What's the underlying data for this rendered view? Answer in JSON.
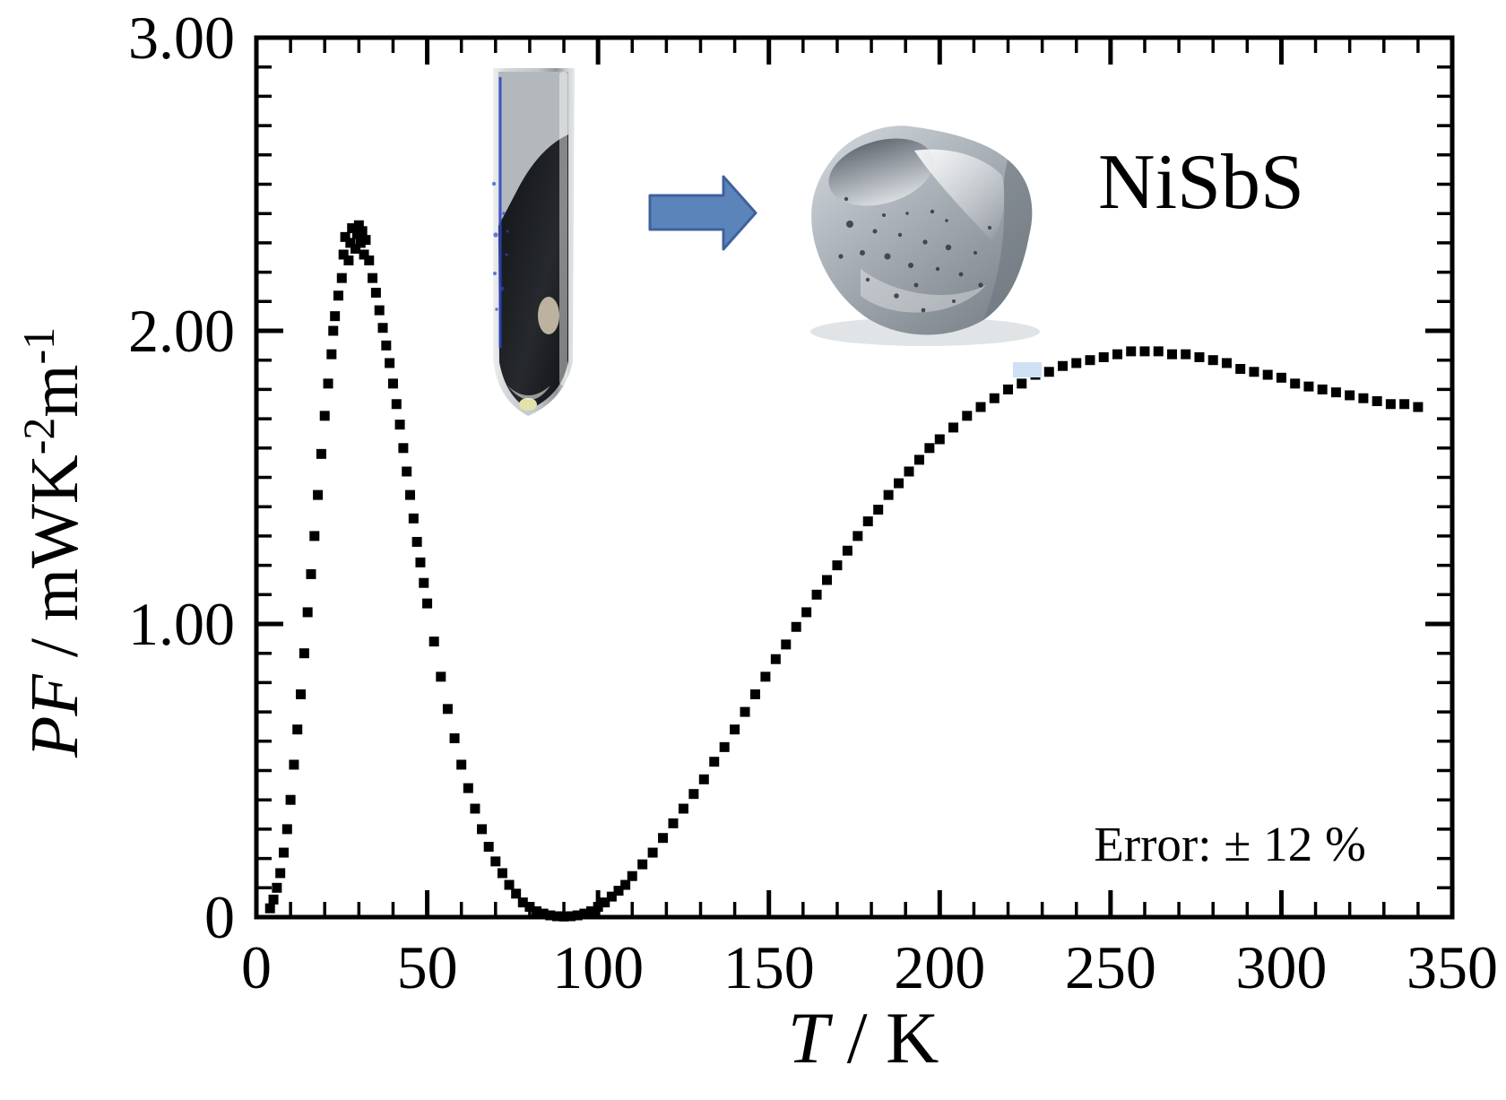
{
  "annotations": {
    "sample_label": "NiSbS",
    "error_label": "Error: ± 12 %"
  },
  "colors": {
    "marker": "#000000",
    "axis": "#000000",
    "arrow_fill": "#5b84bb",
    "arrow_border": "#41619c"
  },
  "chart_data": {
    "type": "scatter",
    "title": "",
    "xlabel_italic": "T",
    "xlabel_rest": " / K",
    "ylabel_italic": "PF",
    "ylabel_unit1": " / mWK",
    "ylabel_sup1": "-2",
    "ylabel_unit2": "m",
    "ylabel_sup2": "-1",
    "xlim": [
      0,
      350
    ],
    "ylim": [
      0,
      3
    ],
    "x_major_tick_step": 50,
    "x_minor_tick_step": 10,
    "y_major_tick_step": 1,
    "y_minor_tick_step": 0.1,
    "x_tick_labels": [
      "0",
      "50",
      "100",
      "150",
      "200",
      "250",
      "300",
      "350"
    ],
    "y_tick_labels": [
      "0",
      "1.00",
      "2.00",
      "3.00"
    ],
    "grid": false,
    "legend_position": "none",
    "marker_shape": "square",
    "marker_size_px": 11,
    "marker_color": "#000000",
    "series": [
      {
        "name": "NiSbS",
        "points": [
          [
            4,
            0.03
          ],
          [
            5,
            0.06
          ],
          [
            6,
            0.1
          ],
          [
            7,
            0.15
          ],
          [
            8,
            0.22
          ],
          [
            9,
            0.3
          ],
          [
            10,
            0.4
          ],
          [
            11,
            0.52
          ],
          [
            12,
            0.64
          ],
          [
            13,
            0.76
          ],
          [
            14,
            0.9
          ],
          [
            15,
            1.04
          ],
          [
            16,
            1.17
          ],
          [
            17,
            1.3
          ],
          [
            18,
            1.44
          ],
          [
            19,
            1.58
          ],
          [
            20,
            1.71
          ],
          [
            21,
            1.82
          ],
          [
            22,
            1.92
          ],
          [
            22.5,
            2.0
          ],
          [
            23,
            2.05
          ],
          [
            24,
            2.12
          ],
          [
            25,
            2.18
          ],
          [
            25.5,
            2.26
          ],
          [
            26,
            2.32
          ],
          [
            27,
            2.24
          ],
          [
            27.5,
            2.3
          ],
          [
            28,
            2.35
          ],
          [
            29,
            2.28
          ],
          [
            29.5,
            2.33
          ],
          [
            30,
            2.36
          ],
          [
            30.5,
            2.3
          ],
          [
            31,
            2.34
          ],
          [
            31.5,
            2.26
          ],
          [
            32,
            2.31
          ],
          [
            33,
            2.24
          ],
          [
            34,
            2.18
          ],
          [
            35,
            2.13
          ],
          [
            36,
            2.07
          ],
          [
            37,
            2.01
          ],
          [
            38,
            1.95
          ],
          [
            39,
            1.89
          ],
          [
            40,
            1.82
          ],
          [
            41,
            1.75
          ],
          [
            42,
            1.68
          ],
          [
            43,
            1.6
          ],
          [
            44,
            1.52
          ],
          [
            45,
            1.44
          ],
          [
            46,
            1.36
          ],
          [
            47,
            1.28
          ],
          [
            48,
            1.21
          ],
          [
            49,
            1.14
          ],
          [
            50,
            1.07
          ],
          [
            52,
            0.94
          ],
          [
            54,
            0.82
          ],
          [
            56,
            0.71
          ],
          [
            58,
            0.61
          ],
          [
            60,
            0.52
          ],
          [
            62,
            0.44
          ],
          [
            64,
            0.37
          ],
          [
            66,
            0.3
          ],
          [
            68,
            0.24
          ],
          [
            70,
            0.19
          ],
          [
            72,
            0.15
          ],
          [
            74,
            0.11
          ],
          [
            76,
            0.08
          ],
          [
            78,
            0.05
          ],
          [
            80,
            0.035
          ],
          [
            82,
            0.02
          ],
          [
            84,
            0.012
          ],
          [
            86,
            0.006
          ],
          [
            88,
            0.003
          ],
          [
            90,
            0.002
          ],
          [
            92,
            0.003
          ],
          [
            94,
            0.006
          ],
          [
            96,
            0.012
          ],
          [
            98,
            0.02
          ],
          [
            100,
            0.035
          ],
          [
            102,
            0.05
          ],
          [
            104,
            0.07
          ],
          [
            106,
            0.09
          ],
          [
            108,
            0.11
          ],
          [
            110,
            0.14
          ],
          [
            113,
            0.18
          ],
          [
            116,
            0.22
          ],
          [
            119,
            0.27
          ],
          [
            122,
            0.32
          ],
          [
            125,
            0.37
          ],
          [
            128,
            0.42
          ],
          [
            131,
            0.47
          ],
          [
            134,
            0.53
          ],
          [
            137,
            0.58
          ],
          [
            140,
            0.64
          ],
          [
            143,
            0.7
          ],
          [
            146,
            0.76
          ],
          [
            149,
            0.82
          ],
          [
            152,
            0.88
          ],
          [
            155,
            0.93
          ],
          [
            158,
            0.99
          ],
          [
            161,
            1.04
          ],
          [
            164,
            1.1
          ],
          [
            167,
            1.15
          ],
          [
            170,
            1.2
          ],
          [
            173,
            1.25
          ],
          [
            176,
            1.3
          ],
          [
            179,
            1.35
          ],
          [
            182,
            1.39
          ],
          [
            185,
            1.44
          ],
          [
            188,
            1.48
          ],
          [
            191,
            1.52
          ],
          [
            194,
            1.56
          ],
          [
            197,
            1.6
          ],
          [
            200,
            1.63
          ],
          [
            204,
            1.67
          ],
          [
            208,
            1.71
          ],
          [
            212,
            1.74
          ],
          [
            216,
            1.77
          ],
          [
            220,
            1.8
          ],
          [
            224,
            1.82
          ],
          [
            228,
            1.85
          ],
          [
            232,
            1.86
          ],
          [
            236,
            1.88
          ],
          [
            240,
            1.89
          ],
          [
            244,
            1.9
          ],
          [
            248,
            1.91
          ],
          [
            252,
            1.92
          ],
          [
            256,
            1.93
          ],
          [
            260,
            1.93
          ],
          [
            264,
            1.93
          ],
          [
            268,
            1.92
          ],
          [
            272,
            1.92
          ],
          [
            276,
            1.91
          ],
          [
            280,
            1.9
          ],
          [
            284,
            1.89
          ],
          [
            288,
            1.87
          ],
          [
            292,
            1.86
          ],
          [
            296,
            1.85
          ],
          [
            300,
            1.84
          ],
          [
            304,
            1.82
          ],
          [
            308,
            1.81
          ],
          [
            312,
            1.8
          ],
          [
            316,
            1.79
          ],
          [
            320,
            1.78
          ],
          [
            324,
            1.77
          ],
          [
            328,
            1.76
          ],
          [
            332,
            1.75
          ],
          [
            336,
            1.75
          ],
          [
            340,
            1.74
          ]
        ]
      }
    ]
  }
}
